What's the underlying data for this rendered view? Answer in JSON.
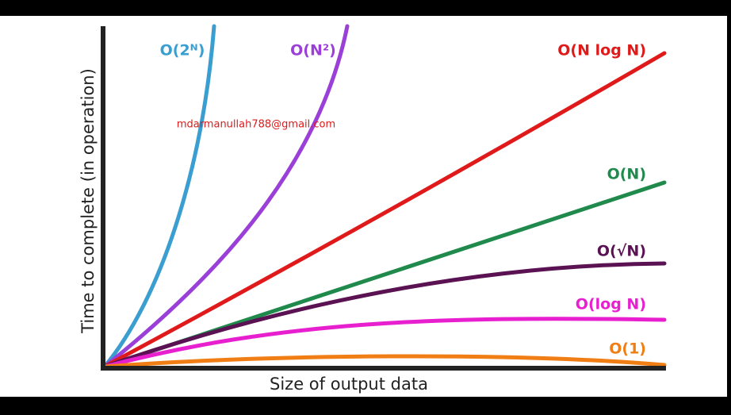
{
  "axes": {
    "y_label": "Time to complete (in operation)",
    "x_label": "Size of output data"
  },
  "curves": [
    {
      "label": "O(2ᴺ)"
    },
    {
      "label": "O(N²)"
    },
    {
      "label": "O(N log N)"
    },
    {
      "label": "O(N)"
    },
    {
      "label": "O(√N)"
    },
    {
      "label": "O(log N)"
    },
    {
      "label": "O(1)"
    }
  ],
  "watermark": "mdarmanullah788@gmail.com"
}
